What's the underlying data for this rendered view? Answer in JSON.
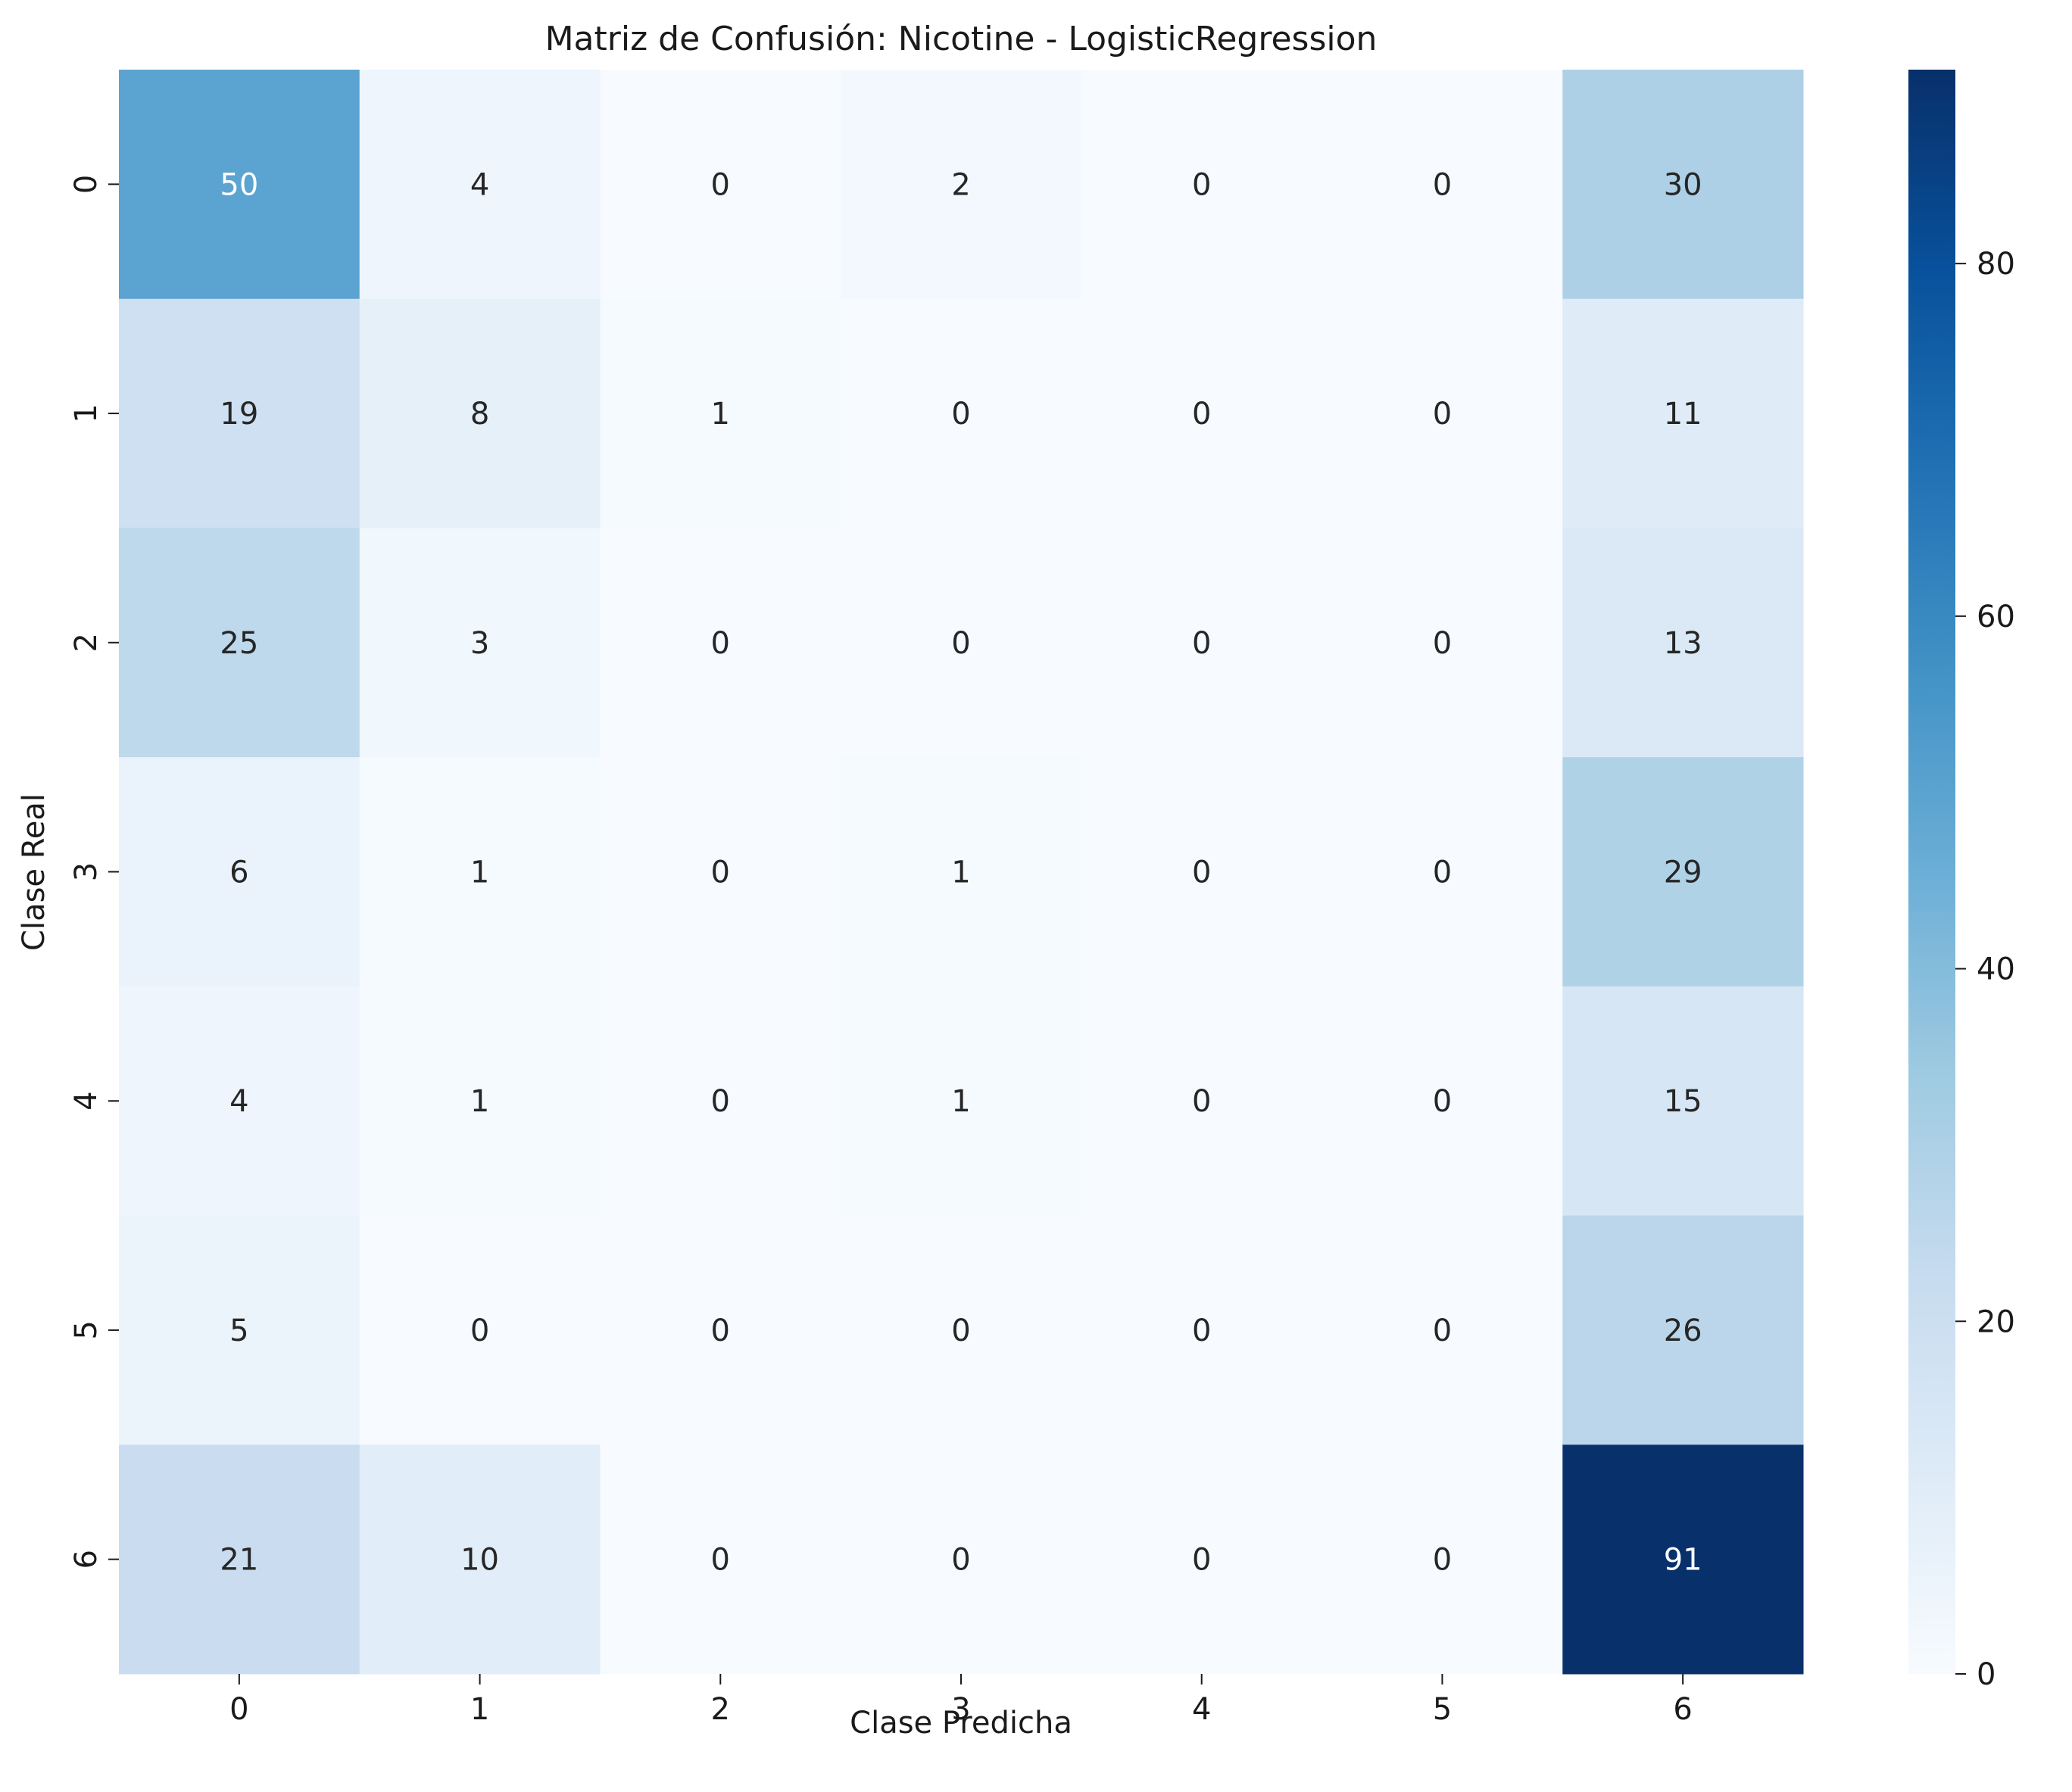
{
  "chart_data": {
    "type": "heatmap",
    "title": "Matriz de Confusión: Nicotine - LogisticRegression",
    "xlabel": "Clase Predicha",
    "ylabel": "Clase Real",
    "x_categories": [
      "0",
      "1",
      "2",
      "3",
      "4",
      "5",
      "6"
    ],
    "y_categories": [
      "0",
      "1",
      "2",
      "3",
      "4",
      "5",
      "6"
    ],
    "values": [
      [
        50,
        4,
        0,
        2,
        0,
        0,
        30
      ],
      [
        19,
        8,
        1,
        0,
        0,
        0,
        11
      ],
      [
        25,
        3,
        0,
        0,
        0,
        0,
        13
      ],
      [
        6,
        1,
        0,
        1,
        0,
        0,
        29
      ],
      [
        4,
        1,
        0,
        1,
        0,
        0,
        15
      ],
      [
        5,
        0,
        0,
        0,
        0,
        0,
        26
      ],
      [
        21,
        10,
        0,
        0,
        0,
        0,
        91
      ]
    ],
    "colorscale": "Blues",
    "color_min": 0,
    "color_max": 91,
    "colorbar_ticks": [
      "0",
      "20",
      "40",
      "60",
      "80"
    ],
    "colorbar_tick_values": [
      0,
      20,
      40,
      60,
      80
    ],
    "grid": false,
    "legend": "colorbar-right"
  }
}
